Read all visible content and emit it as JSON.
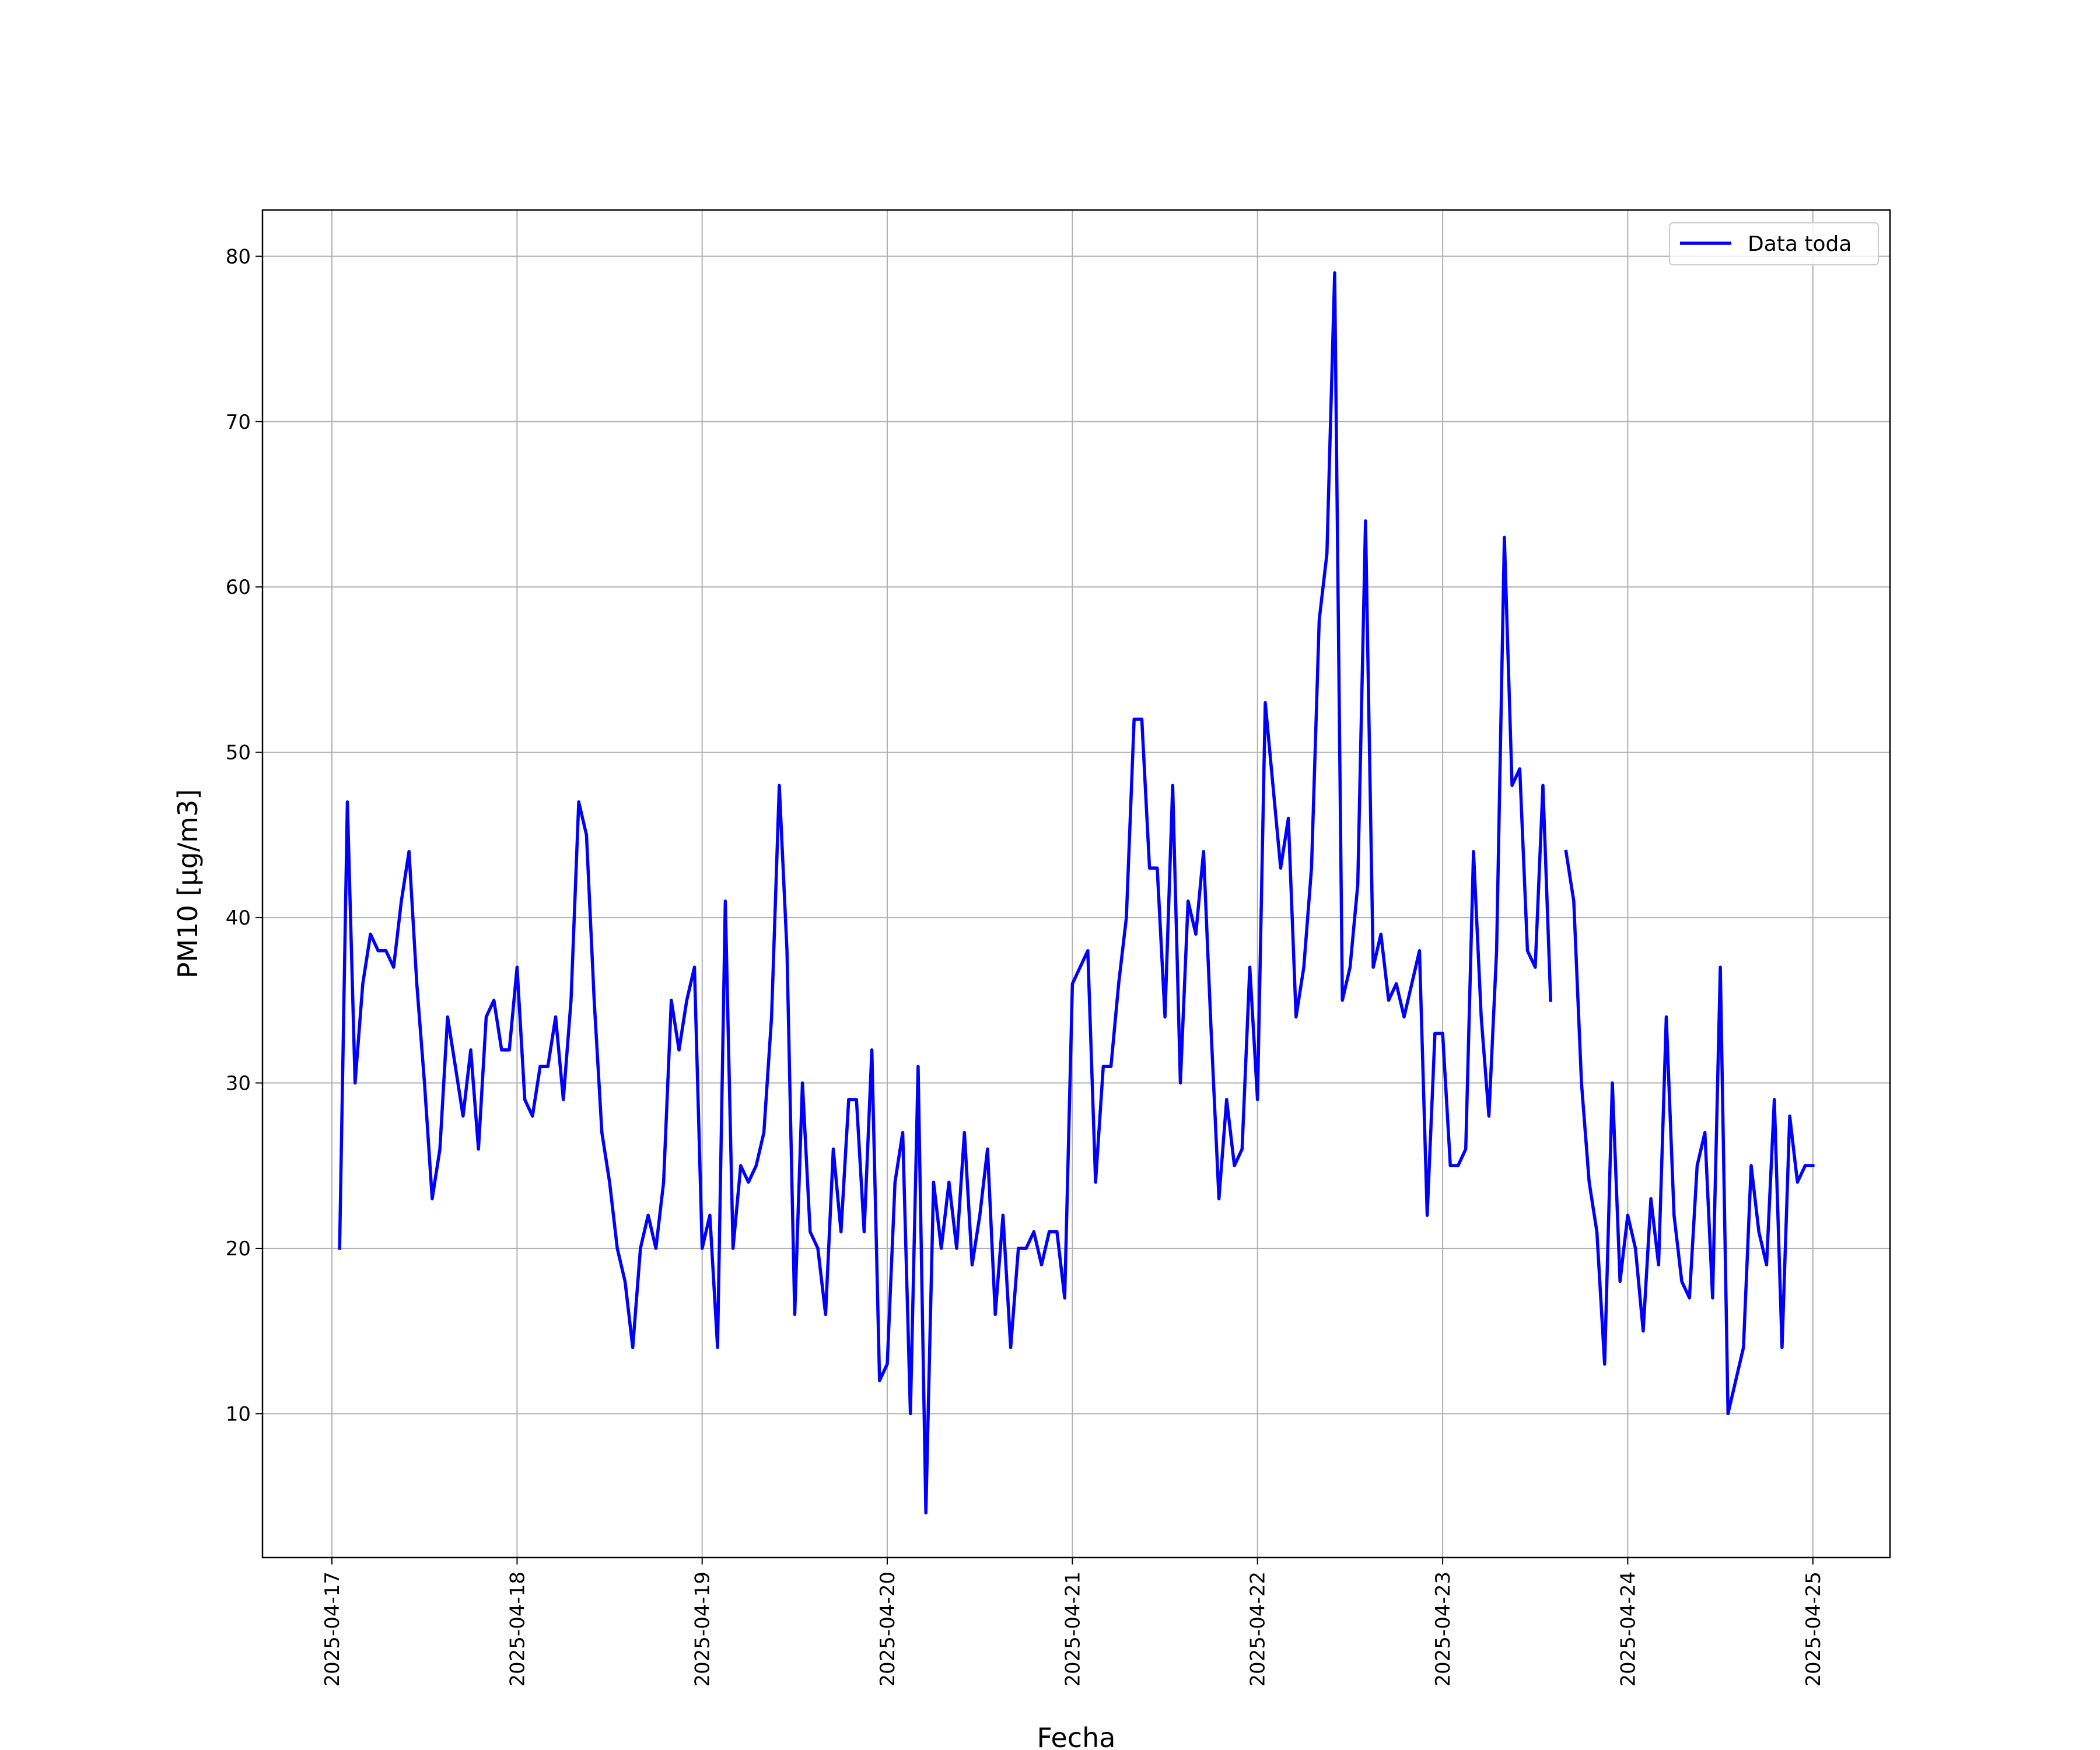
{
  "chart_data": {
    "type": "line",
    "title": "",
    "xlabel": "Fecha",
    "ylabel": "PM10 [μg/m3]",
    "x_ticks": [
      "2025-04-17",
      "2025-04-18",
      "2025-04-19",
      "2025-04-20",
      "2025-04-21",
      "2025-04-22",
      "2025-04-23",
      "2025-04-24",
      "2025-04-25"
    ],
    "y_ticks": [
      10,
      20,
      30,
      40,
      50,
      60,
      70,
      80
    ],
    "xlim": [
      "2025-04-16T15:00",
      "2025-04-25T10:00"
    ],
    "ylim": [
      1.3,
      82.8
    ],
    "grid": true,
    "legend_position": "top-right",
    "series": [
      {
        "name": "Data toda",
        "color": "#0000ff",
        "points": [
          [
            "2025-04-17T01:00",
            20
          ],
          [
            "2025-04-17T02:00",
            47
          ],
          [
            "2025-04-17T03:00",
            30
          ],
          [
            "2025-04-17T04:00",
            36
          ],
          [
            "2025-04-17T05:00",
            39
          ],
          [
            "2025-04-17T06:00",
            38
          ],
          [
            "2025-04-17T07:00",
            38
          ],
          [
            "2025-04-17T08:00",
            37
          ],
          [
            "2025-04-17T09:00",
            41
          ],
          [
            "2025-04-17T10:00",
            44
          ],
          [
            "2025-04-17T11:00",
            36
          ],
          [
            "2025-04-17T12:00",
            30
          ],
          [
            "2025-04-17T13:00",
            23
          ],
          [
            "2025-04-17T14:00",
            26
          ],
          [
            "2025-04-17T15:00",
            34
          ],
          [
            "2025-04-17T16:00",
            31
          ],
          [
            "2025-04-17T17:00",
            28
          ],
          [
            "2025-04-17T18:00",
            32
          ],
          [
            "2025-04-17T19:00",
            26
          ],
          [
            "2025-04-17T20:00",
            34
          ],
          [
            "2025-04-17T21:00",
            35
          ],
          [
            "2025-04-17T22:00",
            32
          ],
          [
            "2025-04-17T23:00",
            32
          ],
          [
            "2025-04-18T00:00",
            37
          ],
          [
            "2025-04-18T01:00",
            29
          ],
          [
            "2025-04-18T02:00",
            28
          ],
          [
            "2025-04-18T03:00",
            31
          ],
          [
            "2025-04-18T04:00",
            31
          ],
          [
            "2025-04-18T05:00",
            34
          ],
          [
            "2025-04-18T06:00",
            29
          ],
          [
            "2025-04-18T07:00",
            35
          ],
          [
            "2025-04-18T08:00",
            47
          ],
          [
            "2025-04-18T09:00",
            45
          ],
          [
            "2025-04-18T10:00",
            35
          ],
          [
            "2025-04-18T11:00",
            27
          ],
          [
            "2025-04-18T12:00",
            24
          ],
          [
            "2025-04-18T13:00",
            20
          ],
          [
            "2025-04-18T14:00",
            18
          ],
          [
            "2025-04-18T15:00",
            14
          ],
          [
            "2025-04-18T16:00",
            20
          ],
          [
            "2025-04-18T17:00",
            22
          ],
          [
            "2025-04-18T18:00",
            20
          ],
          [
            "2025-04-18T19:00",
            24
          ],
          [
            "2025-04-18T20:00",
            35
          ],
          [
            "2025-04-18T21:00",
            32
          ],
          [
            "2025-04-18T22:00",
            35
          ],
          [
            "2025-04-18T23:00",
            37
          ],
          [
            "2025-04-19T00:00",
            20
          ],
          [
            "2025-04-19T01:00",
            22
          ],
          [
            "2025-04-19T02:00",
            14
          ],
          [
            "2025-04-19T03:00",
            41
          ],
          [
            "2025-04-19T04:00",
            20
          ],
          [
            "2025-04-19T05:00",
            25
          ],
          [
            "2025-04-19T06:00",
            24
          ],
          [
            "2025-04-19T07:00",
            25
          ],
          [
            "2025-04-19T08:00",
            27
          ],
          [
            "2025-04-19T09:00",
            34
          ],
          [
            "2025-04-19T10:00",
            48
          ],
          [
            "2025-04-19T11:00",
            38
          ],
          [
            "2025-04-19T12:00",
            16
          ],
          [
            "2025-04-19T13:00",
            30
          ],
          [
            "2025-04-19T14:00",
            21
          ],
          [
            "2025-04-19T15:00",
            20
          ],
          [
            "2025-04-19T16:00",
            16
          ],
          [
            "2025-04-19T17:00",
            26
          ],
          [
            "2025-04-19T18:00",
            21
          ],
          [
            "2025-04-19T19:00",
            29
          ],
          [
            "2025-04-19T20:00",
            29
          ],
          [
            "2025-04-19T21:00",
            21
          ],
          [
            "2025-04-19T22:00",
            32
          ],
          [
            "2025-04-19T23:00",
            12
          ],
          [
            "2025-04-20T00:00",
            13
          ],
          [
            "2025-04-20T01:00",
            24
          ],
          [
            "2025-04-20T02:00",
            27
          ],
          [
            "2025-04-20T03:00",
            10
          ],
          [
            "2025-04-20T04:00",
            31
          ],
          [
            "2025-04-20T05:00",
            4
          ],
          [
            "2025-04-20T06:00",
            24
          ],
          [
            "2025-04-20T07:00",
            20
          ],
          [
            "2025-04-20T08:00",
            24
          ],
          [
            "2025-04-20T09:00",
            20
          ],
          [
            "2025-04-20T10:00",
            27
          ],
          [
            "2025-04-20T11:00",
            19
          ],
          [
            "2025-04-20T12:00",
            22
          ],
          [
            "2025-04-20T13:00",
            26
          ],
          [
            "2025-04-20T14:00",
            16
          ],
          [
            "2025-04-20T15:00",
            22
          ],
          [
            "2025-04-20T16:00",
            14
          ],
          [
            "2025-04-20T17:00",
            20
          ],
          [
            "2025-04-20T18:00",
            20
          ],
          [
            "2025-04-20T19:00",
            21
          ],
          [
            "2025-04-20T20:00",
            19
          ],
          [
            "2025-04-20T21:00",
            21
          ],
          [
            "2025-04-20T22:00",
            21
          ],
          [
            "2025-04-20T23:00",
            17
          ],
          [
            "2025-04-21T00:00",
            36
          ],
          [
            "2025-04-21T01:00",
            37
          ],
          [
            "2025-04-21T02:00",
            38
          ],
          [
            "2025-04-21T03:00",
            24
          ],
          [
            "2025-04-21T04:00",
            31
          ],
          [
            "2025-04-21T05:00",
            31
          ],
          [
            "2025-04-21T06:00",
            36
          ],
          [
            "2025-04-21T07:00",
            40
          ],
          [
            "2025-04-21T08:00",
            52
          ],
          [
            "2025-04-21T09:00",
            52
          ],
          [
            "2025-04-21T10:00",
            43
          ],
          [
            "2025-04-21T11:00",
            43
          ],
          [
            "2025-04-21T12:00",
            34
          ],
          [
            "2025-04-21T13:00",
            48
          ],
          [
            "2025-04-21T14:00",
            30
          ],
          [
            "2025-04-21T15:00",
            41
          ],
          [
            "2025-04-21T16:00",
            39
          ],
          [
            "2025-04-21T17:00",
            44
          ],
          [
            "2025-04-21T18:00",
            33
          ],
          [
            "2025-04-21T19:00",
            23
          ],
          [
            "2025-04-21T20:00",
            29
          ],
          [
            "2025-04-21T21:00",
            25
          ],
          [
            "2025-04-21T22:00",
            26
          ],
          [
            "2025-04-21T23:00",
            37
          ],
          [
            "2025-04-22T00:00",
            29
          ],
          [
            "2025-04-22T01:00",
            53
          ],
          [
            "2025-04-22T02:00",
            48
          ],
          [
            "2025-04-22T03:00",
            43
          ],
          [
            "2025-04-22T04:00",
            46
          ],
          [
            "2025-04-22T05:00",
            34
          ],
          [
            "2025-04-22T06:00",
            37
          ],
          [
            "2025-04-22T07:00",
            43
          ],
          [
            "2025-04-22T08:00",
            58
          ],
          [
            "2025-04-22T09:00",
            62
          ],
          [
            "2025-04-22T10:00",
            79
          ],
          [
            "2025-04-22T11:00",
            35
          ],
          [
            "2025-04-22T12:00",
            37
          ],
          [
            "2025-04-22T13:00",
            42
          ],
          [
            "2025-04-22T14:00",
            64
          ],
          [
            "2025-04-22T15:00",
            37
          ],
          [
            "2025-04-22T16:00",
            39
          ],
          [
            "2025-04-22T17:00",
            35
          ],
          [
            "2025-04-22T18:00",
            36
          ],
          [
            "2025-04-22T19:00",
            34
          ],
          [
            "2025-04-22T20:00",
            36
          ],
          [
            "2025-04-22T21:00",
            38
          ],
          [
            "2025-04-22T22:00",
            22
          ],
          [
            "2025-04-22T23:00",
            33
          ],
          [
            "2025-04-23T00:00",
            33
          ],
          [
            "2025-04-23T01:00",
            25
          ],
          [
            "2025-04-23T02:00",
            25
          ],
          [
            "2025-04-23T03:00",
            26
          ],
          [
            "2025-04-23T04:00",
            44
          ],
          [
            "2025-04-23T05:00",
            34
          ],
          [
            "2025-04-23T06:00",
            28
          ],
          [
            "2025-04-23T07:00",
            38
          ],
          [
            "2025-04-23T08:00",
            63
          ],
          [
            "2025-04-23T09:00",
            48
          ],
          [
            "2025-04-23T10:00",
            49
          ],
          [
            "2025-04-23T11:00",
            38
          ],
          [
            "2025-04-23T12:00",
            37
          ],
          [
            "2025-04-23T13:00",
            48
          ],
          [
            "2025-04-23T14:00",
            35
          ],
          [
            "2025-04-23T15:00",
            null
          ],
          [
            "2025-04-23T16:00",
            44
          ],
          [
            "2025-04-23T17:00",
            41
          ],
          [
            "2025-04-23T18:00",
            30
          ],
          [
            "2025-04-23T19:00",
            24
          ],
          [
            "2025-04-23T20:00",
            21
          ],
          [
            "2025-04-23T21:00",
            13
          ],
          [
            "2025-04-23T22:00",
            30
          ],
          [
            "2025-04-23T23:00",
            18
          ],
          [
            "2025-04-24T00:00",
            22
          ],
          [
            "2025-04-24T01:00",
            20
          ],
          [
            "2025-04-24T02:00",
            15
          ],
          [
            "2025-04-24T03:00",
            23
          ],
          [
            "2025-04-24T04:00",
            19
          ],
          [
            "2025-04-24T05:00",
            34
          ],
          [
            "2025-04-24T06:00",
            22
          ],
          [
            "2025-04-24T07:00",
            18
          ],
          [
            "2025-04-24T08:00",
            17
          ],
          [
            "2025-04-24T09:00",
            25
          ],
          [
            "2025-04-24T10:00",
            27
          ],
          [
            "2025-04-24T11:00",
            17
          ],
          [
            "2025-04-24T12:00",
            37
          ],
          [
            "2025-04-24T13:00",
            10
          ],
          [
            "2025-04-24T14:00",
            12
          ],
          [
            "2025-04-24T15:00",
            14
          ],
          [
            "2025-04-24T16:00",
            25
          ],
          [
            "2025-04-24T17:00",
            21
          ],
          [
            "2025-04-24T18:00",
            19
          ],
          [
            "2025-04-24T19:00",
            29
          ],
          [
            "2025-04-24T20:00",
            14
          ],
          [
            "2025-04-24T21:00",
            28
          ],
          [
            "2025-04-24T22:00",
            24
          ],
          [
            "2025-04-24T23:00",
            25
          ],
          [
            "2025-04-25T00:00",
            25
          ]
        ]
      }
    ]
  }
}
